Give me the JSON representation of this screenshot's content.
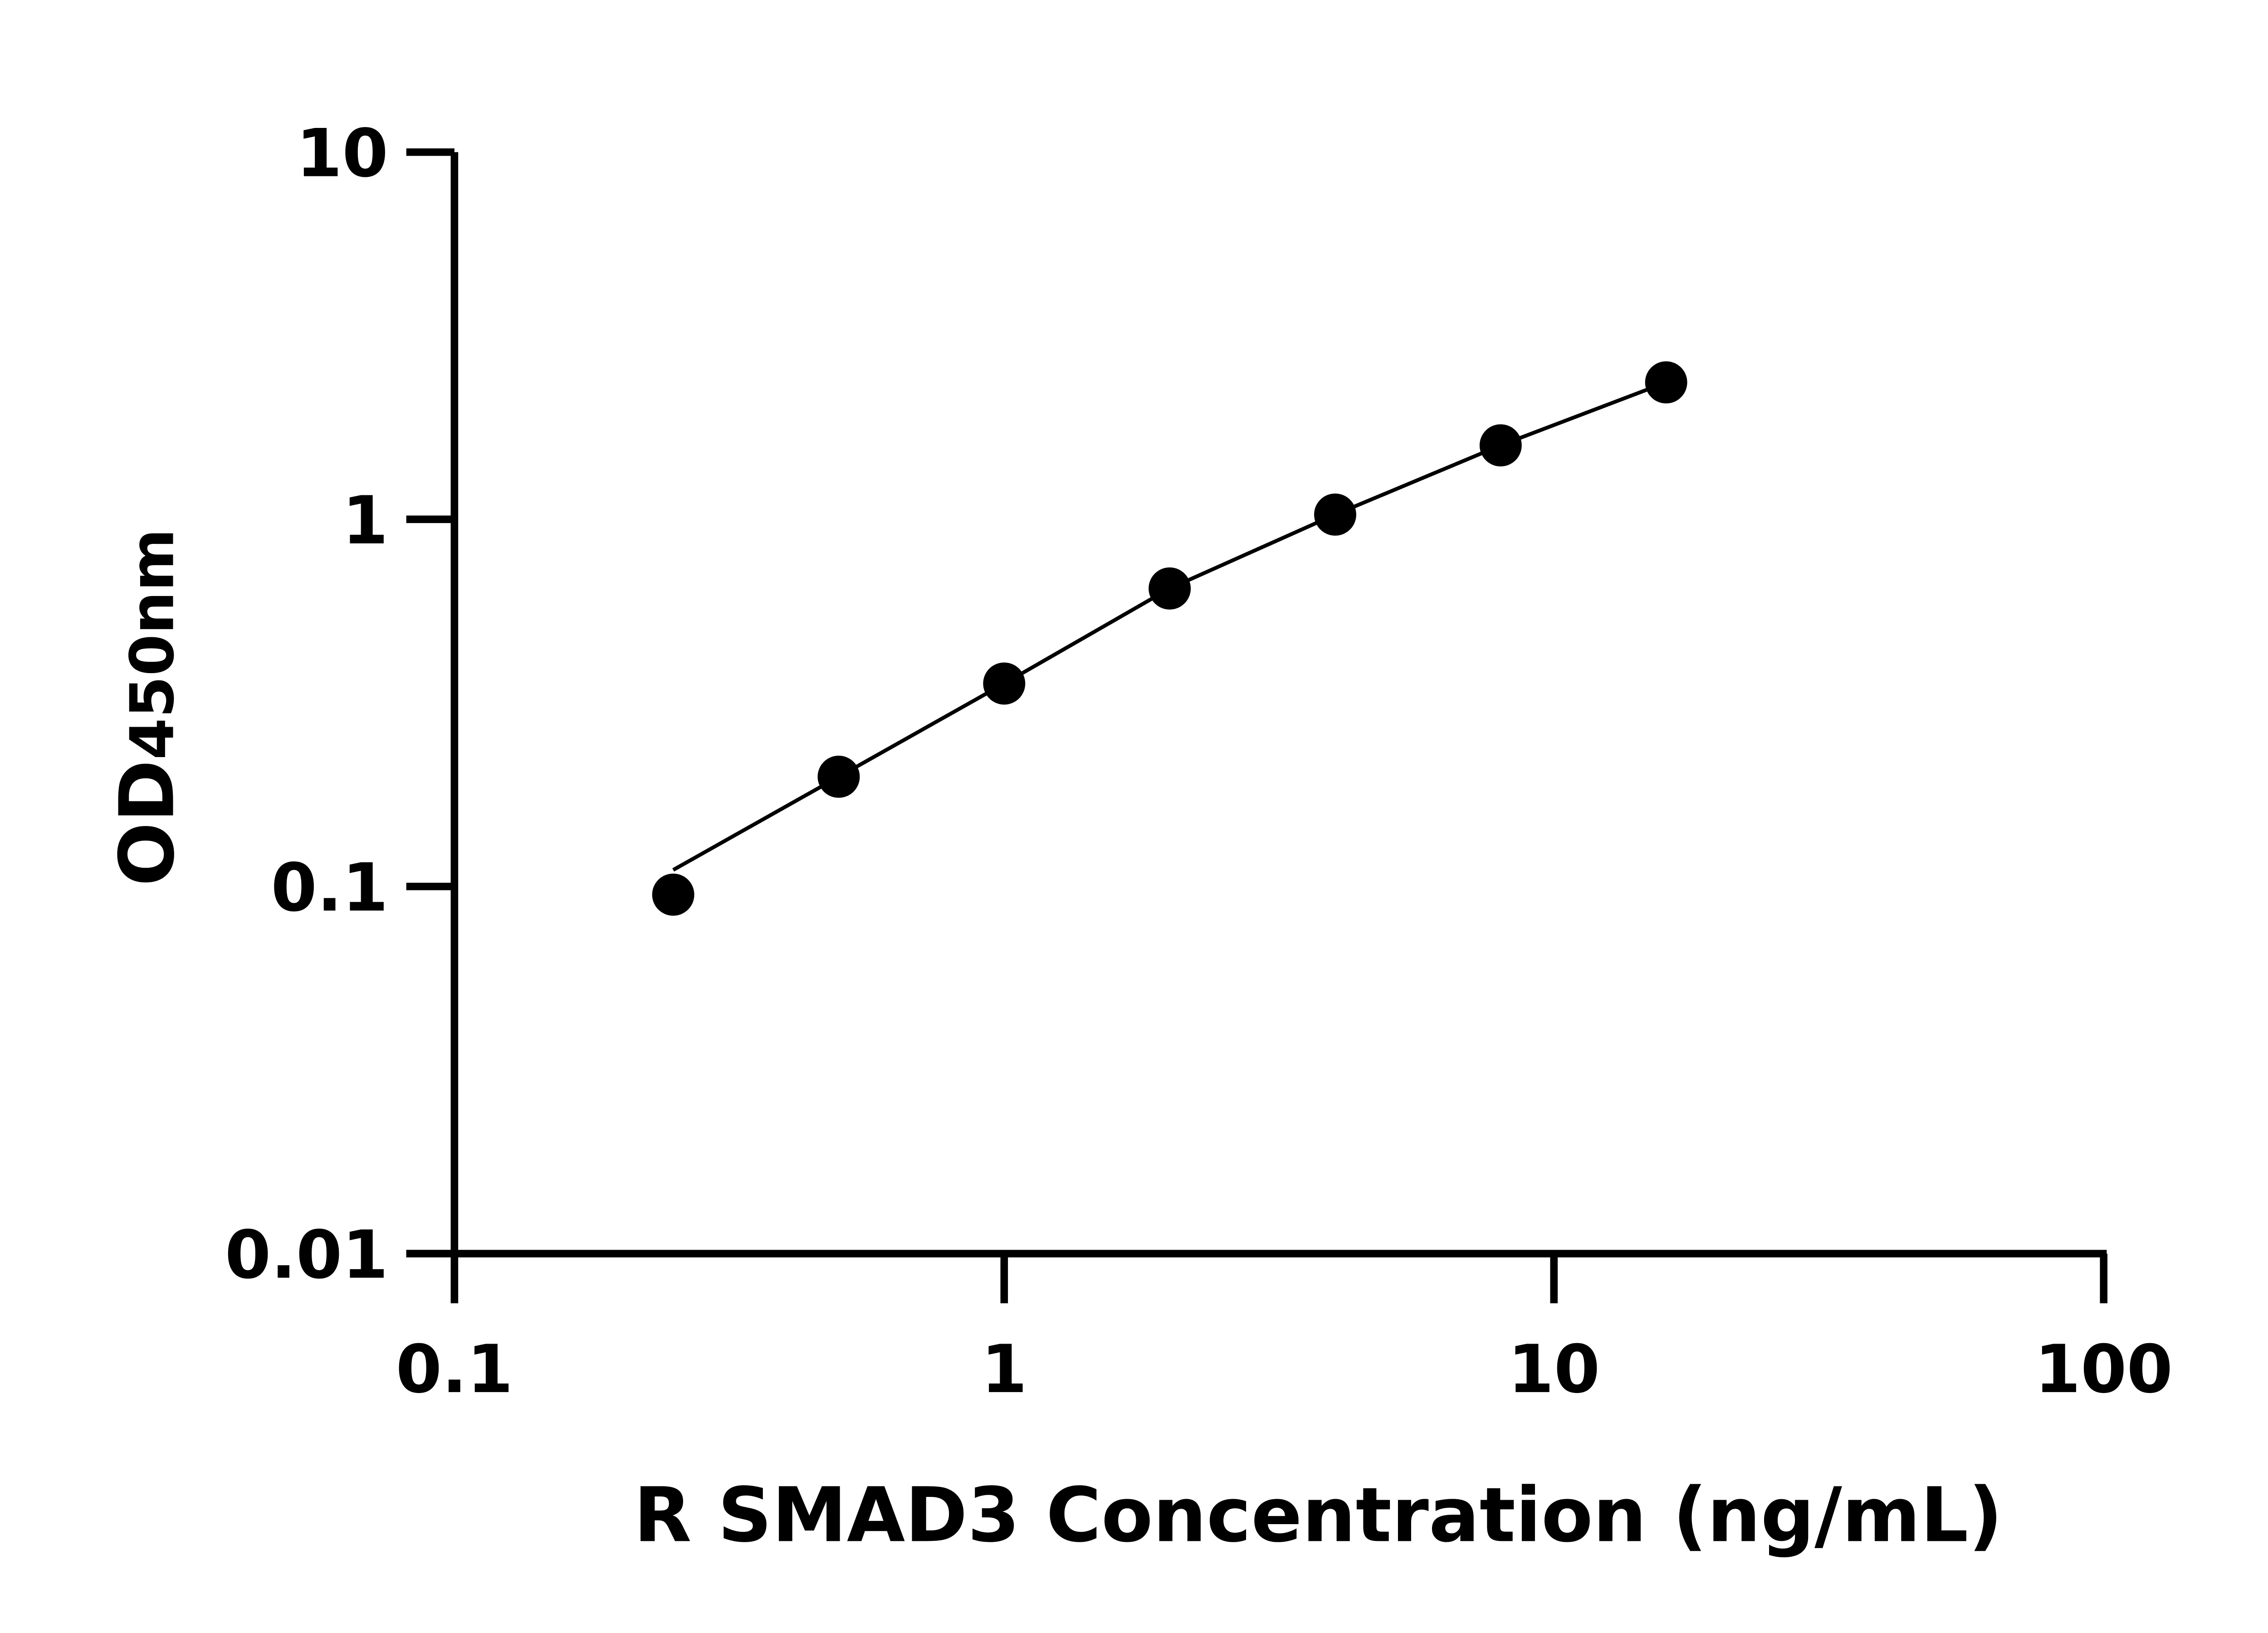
{
  "chart_data": {
    "type": "scatter",
    "title": "",
    "xlabel": "R SMAD3 Concentration (ng/mL)",
    "ylabel_main": "OD",
    "ylabel_sub": "450nm",
    "x_scale": "log",
    "y_scale": "log",
    "xlim": [
      0.1,
      100
    ],
    "ylim": [
      0.01,
      10
    ],
    "x_ticks": [
      "0.1",
      "1",
      "10",
      "100"
    ],
    "y_ticks": [
      "0.01",
      "0.1",
      "1",
      "10"
    ],
    "grid": false,
    "legend": "none",
    "fit_line": true,
    "marker_color": "#000000",
    "x": [
      0.25,
      0.5,
      1,
      2,
      4,
      8,
      16
    ],
    "y": [
      0.095,
      0.199,
      0.357,
      0.648,
      1.03,
      1.59,
      2.36
    ]
  }
}
